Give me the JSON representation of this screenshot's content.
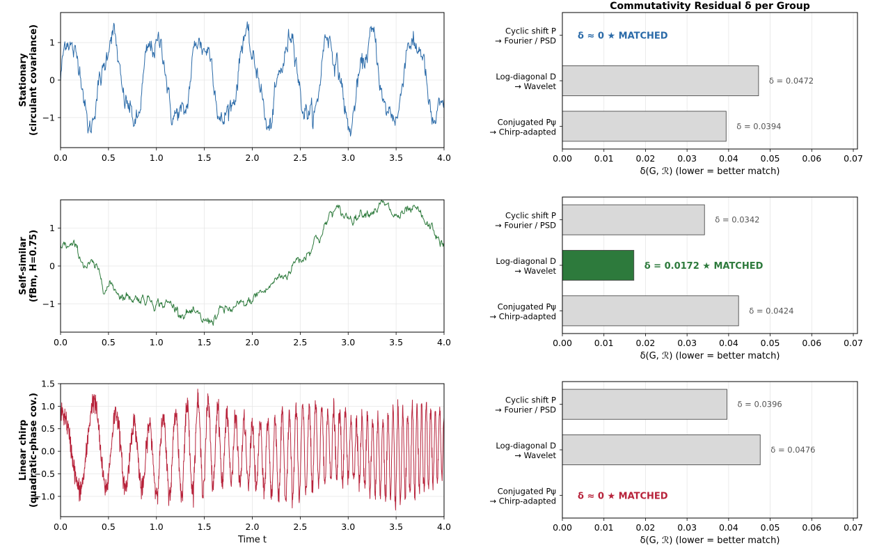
{
  "colors": {
    "stationary": "#2a6aa8",
    "self_similar": "#2d7a3c",
    "chirp": "#b7223a",
    "unmatched_bar": "#d9d9d9",
    "bar_edge": "#4d4d4d",
    "grid": "#e6e6e6"
  },
  "chart_data": [
    {
      "type": "line",
      "row": 0,
      "ylabel": "Stationary",
      "ylabel_sub": "(circulant covariance)",
      "xlabel": "",
      "xlim": [
        0,
        4
      ],
      "ylim": [
        -1.8,
        1.8
      ],
      "xticks": [
        "0.0",
        "0.5",
        "1.0",
        "1.5",
        "2.0",
        "2.5",
        "3.0",
        "3.5",
        "4.0"
      ],
      "yticks": [
        "1",
        "0",
        "−1"
      ],
      "ytick_values": [
        1,
        0,
        -1
      ],
      "signal": {
        "kind": "stationary",
        "n_samples": 800,
        "period": 0.45,
        "amplitude": 1.1
      },
      "grid": true
    },
    {
      "type": "bar",
      "orientation": "horizontal",
      "row": 0,
      "title": "Commutativity Residual δ per Group",
      "xlabel": "δ(G, ℛ)  (lower = better match)",
      "xlim": [
        0,
        0.071
      ],
      "xticks": [
        "0.00",
        "0.01",
        "0.02",
        "0.03",
        "0.04",
        "0.05",
        "0.06",
        "0.07"
      ],
      "xtick_values": [
        0,
        0.01,
        0.02,
        0.03,
        0.04,
        0.05,
        0.06,
        0.07
      ],
      "categories": [
        {
          "line1": "Cyclic shift P",
          "line2": "→ Fourier / PSD"
        },
        {
          "line1": "Log-diagonal D",
          "line2": "→ Wavelet"
        },
        {
          "line1": "Conjugated Pψ",
          "line2": "→ Chirp-adapted"
        }
      ],
      "values": [
        0,
        0.0472,
        0.0394
      ],
      "labels": [
        "δ ≈ 0  ★ MATCHED",
        "δ = 0.0472",
        "δ = 0.0394"
      ],
      "matched_index": 0,
      "grid": true
    },
    {
      "type": "line",
      "row": 1,
      "ylabel": "Self-similar",
      "ylabel_sub": "(fBm, H=0.75)",
      "xlabel": "",
      "xlim": [
        0,
        4
      ],
      "ylim": [
        -1.75,
        1.75
      ],
      "xticks": [
        "0.0",
        "0.5",
        "1.0",
        "1.5",
        "2.0",
        "2.5",
        "3.0",
        "3.5",
        "4.0"
      ],
      "yticks": [
        "1",
        "0",
        "−1"
      ],
      "ytick_values": [
        1,
        0,
        -1
      ],
      "signal": {
        "kind": "fbm",
        "n_samples": 800,
        "anchors_t": [
          0,
          0.1,
          0.3,
          0.5,
          0.7,
          0.9,
          1.1,
          1.3,
          1.5,
          1.7,
          1.9,
          2.1,
          2.3,
          2.5,
          2.7,
          2.85,
          3.0,
          3.2,
          3.35,
          3.5,
          3.7,
          3.85,
          4.0
        ],
        "anchors_v": [
          0.6,
          0.5,
          0.0,
          -0.5,
          -0.8,
          -0.85,
          -1.0,
          -1.2,
          -1.5,
          -1.2,
          -1.1,
          -0.7,
          -0.3,
          0.2,
          0.8,
          1.45,
          1.3,
          1.5,
          1.6,
          1.3,
          1.4,
          1.0,
          0.55
        ]
      },
      "grid": true
    },
    {
      "type": "bar",
      "orientation": "horizontal",
      "row": 1,
      "xlabel": "δ(G, ℛ)  (lower = better match)",
      "xlim": [
        0,
        0.071
      ],
      "xticks": [
        "0.00",
        "0.01",
        "0.02",
        "0.03",
        "0.04",
        "0.05",
        "0.06",
        "0.07"
      ],
      "xtick_values": [
        0,
        0.01,
        0.02,
        0.03,
        0.04,
        0.05,
        0.06,
        0.07
      ],
      "categories": [
        {
          "line1": "Cyclic shift P",
          "line2": "→ Fourier / PSD"
        },
        {
          "line1": "Log-diagonal D",
          "line2": "→ Wavelet"
        },
        {
          "line1": "Conjugated Pψ",
          "line2": "→ Chirp-adapted"
        }
      ],
      "values": [
        0.0342,
        0.0172,
        0.0424
      ],
      "labels": [
        "δ = 0.0342",
        "δ = 0.0172  ★ MATCHED",
        "δ = 0.0424"
      ],
      "matched_index": 1,
      "grid": true
    },
    {
      "type": "line",
      "row": 2,
      "ylabel": "Linear chirp",
      "ylabel_sub": "(quadratic-phase cov.)",
      "xlabel": "Time t",
      "xlim": [
        0,
        4
      ],
      "ylim": [
        -1.45,
        1.5
      ],
      "xticks": [
        "0.0",
        "0.5",
        "1.0",
        "1.5",
        "2.0",
        "2.5",
        "3.0",
        "3.5",
        "4.0"
      ],
      "yticks": [
        "1.5",
        "1.0",
        "0.5",
        "0.0",
        "−0.5",
        "−1.0"
      ],
      "ytick_values": [
        1.5,
        1.0,
        0.5,
        0.0,
        -0.5,
        -1.0
      ],
      "signal": {
        "kind": "chirp",
        "n_samples": 1600,
        "f0": 2,
        "k": 5,
        "amplitude": 0.9
      },
      "grid": true
    },
    {
      "type": "bar",
      "orientation": "horizontal",
      "row": 2,
      "xlabel": "δ(G, ℛ)  (lower = better match)",
      "xlim": [
        0,
        0.071
      ],
      "xticks": [
        "0.00",
        "0.01",
        "0.02",
        "0.03",
        "0.04",
        "0.05",
        "0.06",
        "0.07"
      ],
      "xtick_values": [
        0,
        0.01,
        0.02,
        0.03,
        0.04,
        0.05,
        0.06,
        0.07
      ],
      "categories": [
        {
          "line1": "Cyclic shift P",
          "line2": "→ Fourier / PSD"
        },
        {
          "line1": "Log-diagonal D",
          "line2": "→ Wavelet"
        },
        {
          "line1": "Conjugated Pψ",
          "line2": "→ Chirp-adapted"
        }
      ],
      "values": [
        0.0396,
        0.0476,
        0
      ],
      "labels": [
        "δ = 0.0396",
        "δ = 0.0476",
        "δ ≈ 0  ★ MATCHED"
      ],
      "matched_index": 2,
      "grid": true
    }
  ]
}
